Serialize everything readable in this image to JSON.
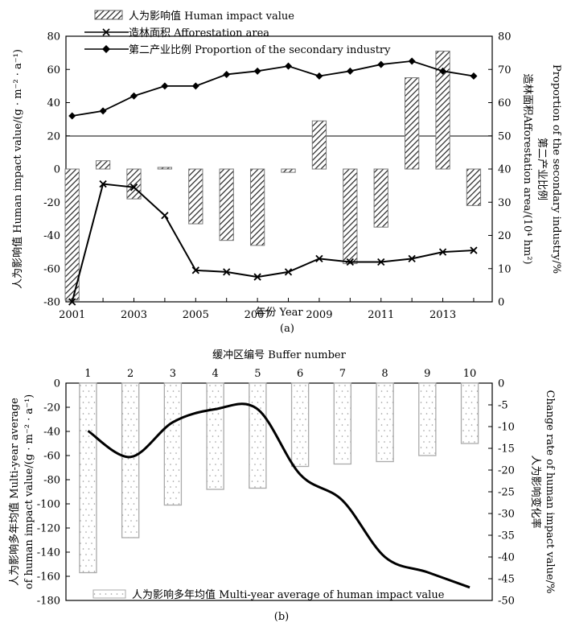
{
  "chart_data": [
    {
      "type": "bar",
      "panel_label": "(a)",
      "x": [
        2001,
        2002,
        2003,
        2004,
        2005,
        2006,
        2007,
        2008,
        2009,
        2010,
        2011,
        2012,
        2013,
        2014
      ],
      "x_ticks": [
        "2001",
        "2003",
        "2005",
        "2007",
        "2009",
        "2011",
        "2013"
      ],
      "xlabel": "年份 Year",
      "ylabel_left": "人为影响值 Human impact value/(g · m⁻² · a⁻¹)",
      "ylabel_right_1": "造林面积Afforestation area/(10⁴ hm²)",
      "ylabel_right_2": "第二产业比例",
      "ylabel_right_3": "Proportion of the secondary industry/%",
      "ylim_left": [
        -80,
        80
      ],
      "ylim_right": [
        0,
        80
      ],
      "yticks_left": [
        "80",
        "60",
        "40",
        "20",
        "0",
        "-20",
        "-40",
        "-60",
        "-80"
      ],
      "yticks_right": [
        "80",
        "70",
        "60",
        "50",
        "40",
        "30",
        "20",
        "10",
        "0"
      ],
      "series": [
        {
          "name": "人为影响值 Human impact value",
          "kind": "bar",
          "axis": "left",
          "values": [
            -79,
            5,
            -18,
            1,
            -33,
            -43,
            -46,
            -2,
            29,
            -57,
            -35,
            55,
            71,
            -22
          ]
        },
        {
          "name": "造林面积 Afforestation area",
          "kind": "line",
          "marker": "x",
          "axis": "right",
          "values": [
            0,
            35.5,
            34.5,
            26,
            9.5,
            9,
            7.5,
            9,
            13,
            12,
            12,
            13,
            15,
            15.5
          ]
        },
        {
          "name": "第二产业比例 Proportion of the secondary industry",
          "kind": "line",
          "marker": "diamond",
          "axis": "right",
          "values": [
            56,
            57.5,
            62,
            65,
            65,
            68.5,
            69.5,
            71,
            68,
            69.5,
            71.5,
            72.5,
            69.5,
            68
          ]
        }
      ]
    },
    {
      "type": "bar",
      "panel_label": "(b)",
      "x": [
        1,
        2,
        3,
        4,
        5,
        6,
        7,
        8,
        9,
        10
      ],
      "x_ticks": [
        "1",
        "2",
        "3",
        "4",
        "5",
        "6",
        "7",
        "8",
        "9",
        "10"
      ],
      "xlabel": "缓冲区编号 Buffer number",
      "ylabel_left_1": "人为影响多年均值 Multi-year  average",
      "ylabel_left_2": "of human impact value/(g · m⁻² · a⁻¹)",
      "ylabel_right_1": "人为影响变化率",
      "ylabel_right_2": "Change  rate of human  impact value/%",
      "ylim_left": [
        -180,
        0
      ],
      "ylim_right": [
        -50,
        0
      ],
      "yticks_left": [
        "0",
        "-20",
        "-40",
        "-60",
        "-80",
        "-100",
        "-120",
        "-140",
        "-160",
        "-180"
      ],
      "yticks_right": [
        "0",
        "-5",
        "-10",
        "-15",
        "-20",
        "-25",
        "-30",
        "-35",
        "-40",
        "-45",
        "-50"
      ],
      "series": [
        {
          "name": "人为影响多年均值 Multi-year average of human impact value",
          "kind": "bar",
          "axis": "left",
          "values": [
            -157,
            -128,
            -101,
            -88,
            -87,
            -69,
            -67,
            -65,
            -60,
            -50
          ]
        },
        {
          "name": "人为影响变化率",
          "kind": "line",
          "axis": "right",
          "values": [
            -11,
            -17,
            -9,
            -6,
            -6,
            -21,
            -27,
            -40,
            -43.5,
            -47
          ]
        }
      ]
    }
  ]
}
